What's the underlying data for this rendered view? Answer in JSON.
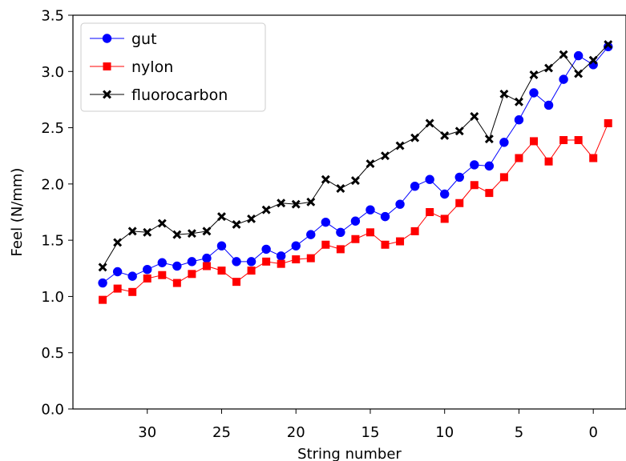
{
  "chart_data": {
    "type": "line",
    "title": "",
    "xlabel": "String number",
    "ylabel": "Feel (N/mm)",
    "xlim": [
      35.0,
      -2.2
    ],
    "ylim": [
      0.0,
      3.5
    ],
    "x_ticks": [
      30,
      25,
      20,
      15,
      10,
      5,
      0
    ],
    "y_ticks": [
      "0.0",
      "0.5",
      "1.0",
      "1.5",
      "2.0",
      "2.5",
      "3.0",
      "3.5"
    ],
    "grid": false,
    "legend": "top-left",
    "x": [
      33,
      32,
      31,
      30,
      29,
      28,
      27,
      26,
      25,
      24,
      23,
      22,
      21,
      20,
      19,
      18,
      17,
      16,
      15,
      14,
      13,
      12,
      11,
      10,
      9,
      8,
      7,
      6,
      5,
      4,
      3,
      2,
      1,
      0,
      -1
    ],
    "series": [
      {
        "name": "gut",
        "color": "#0000ff",
        "marker": "circle",
        "values": [
          1.12,
          1.22,
          1.18,
          1.24,
          1.3,
          1.27,
          1.31,
          1.34,
          1.45,
          1.31,
          1.31,
          1.42,
          1.36,
          1.45,
          1.55,
          1.66,
          1.57,
          1.67,
          1.77,
          1.71,
          1.82,
          1.98,
          2.04,
          1.91,
          2.06,
          2.17,
          2.16,
          2.37,
          2.57,
          2.81,
          2.7,
          2.93,
          3.14,
          3.06,
          3.22
        ]
      },
      {
        "name": "nylon",
        "color": "#ff0000",
        "marker": "square",
        "values": [
          0.97,
          1.07,
          1.04,
          1.16,
          1.19,
          1.12,
          1.2,
          1.27,
          1.23,
          1.13,
          1.23,
          1.31,
          1.29,
          1.33,
          1.34,
          1.46,
          1.42,
          1.51,
          1.57,
          1.46,
          1.49,
          1.58,
          1.75,
          1.69,
          1.83,
          1.99,
          1.92,
          2.06,
          2.23,
          2.38,
          2.2,
          2.39,
          2.39,
          2.23,
          2.54
        ]
      },
      {
        "name": "fluorocarbon",
        "color": "#000000",
        "marker": "x",
        "values": [
          1.26,
          1.48,
          1.58,
          1.57,
          1.65,
          1.55,
          1.56,
          1.58,
          1.71,
          1.64,
          1.69,
          1.77,
          1.83,
          1.82,
          1.84,
          2.04,
          1.96,
          2.03,
          2.18,
          2.25,
          2.34,
          2.41,
          2.54,
          2.43,
          2.47,
          2.6,
          2.4,
          2.8,
          2.73,
          2.97,
          3.03,
          3.15,
          2.98,
          3.1,
          3.24
        ]
      }
    ]
  }
}
